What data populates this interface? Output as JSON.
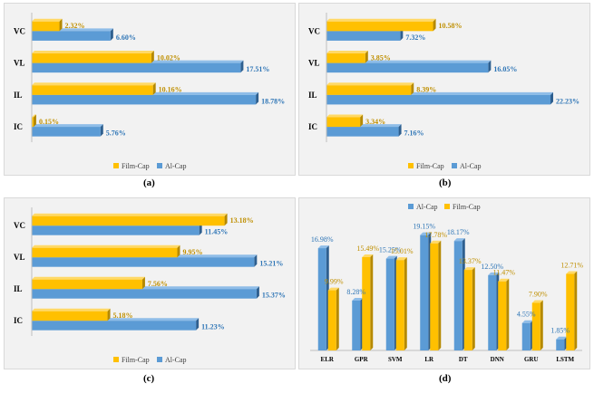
{
  "colors": {
    "al_cap": "#5b9bd5",
    "al_cap_top": "#8fbde8",
    "al_cap_side": "#2e5f8f",
    "film_cap": "#ffc000",
    "film_cap_top": "#ffd966",
    "film_cap_side": "#b58900",
    "al_label": "#2e75b6",
    "film_label": "#bf8f00"
  },
  "captions": [
    "(a)",
    "(b)",
    "(c)",
    "(d)"
  ],
  "chart_data": [
    {
      "type": "bar",
      "orientation": "horizontal",
      "categories": [
        "VC",
        "VL",
        "IL",
        "IC"
      ],
      "series": [
        {
          "name": "Film-Cap",
          "values": [
            2.32,
            10.02,
            10.16,
            0.15
          ],
          "labels": [
            "2.32%",
            "10.02%",
            "10.16%",
            "0.15%"
          ]
        },
        {
          "name": "Al-Cap",
          "values": [
            6.6,
            17.51,
            18.78,
            5.76
          ],
          "labels": [
            "6.60%",
            "17.51%",
            "18.78%",
            "5.76%"
          ]
        }
      ],
      "xlim": [
        0,
        19
      ],
      "legend": "bottom",
      "grid": false
    },
    {
      "type": "bar",
      "orientation": "horizontal",
      "categories": [
        "VC",
        "VL",
        "IL",
        "IC"
      ],
      "series": [
        {
          "name": "Film-Cap",
          "values": [
            10.58,
            3.85,
            8.39,
            3.34
          ],
          "labels": [
            "10.58%",
            "3.85%",
            "8.39%",
            "3.34%"
          ]
        },
        {
          "name": "Al-Cap",
          "values": [
            7.32,
            16.05,
            22.23,
            7.16
          ],
          "labels": [
            "7.32%",
            "16.05%",
            "22.23%",
            "7.16%"
          ]
        }
      ],
      "xlim": [
        0,
        22.5
      ],
      "legend": "bottom",
      "grid": false
    },
    {
      "type": "bar",
      "orientation": "horizontal",
      "categories": [
        "VC",
        "VL",
        "IL",
        "IC"
      ],
      "series": [
        {
          "name": "Film-Cap",
          "values": [
            13.18,
            9.95,
            7.56,
            5.18
          ],
          "labels": [
            "13.18%",
            "9.95%",
            "7.56%",
            "5.18%"
          ]
        },
        {
          "name": "Al-Cap",
          "values": [
            11.45,
            15.21,
            15.37,
            11.23
          ],
          "labels": [
            "11.45%",
            "15.21%",
            "15.37%",
            "11.23%"
          ]
        }
      ],
      "xlim": [
        0,
        15.5
      ],
      "legend": "bottom",
      "grid": false
    },
    {
      "type": "bar",
      "orientation": "vertical",
      "categories": [
        "ELR",
        "GPR",
        "SVM",
        "LR",
        "DT",
        "DNN",
        "GRU",
        "LSTM"
      ],
      "series": [
        {
          "name": "Al-Cap",
          "values": [
            16.98,
            8.28,
            15.25,
            19.15,
            18.17,
            12.5,
            4.55,
            1.85
          ],
          "labels": [
            "16.98%",
            "8.28%",
            "15.25%",
            "19.15%",
            "18.17%",
            "12.50%",
            "4.55%",
            "1.85%"
          ]
        },
        {
          "name": "Film-Cap",
          "values": [
            9.99,
            15.49,
            15.01,
            17.78,
            13.37,
            11.47,
            7.9,
            12.71
          ],
          "labels": [
            "9.99%",
            "15.49%",
            "15.01%",
            "17.78%",
            "13.37%",
            "11.47%",
            "7.90%",
            "12.71%"
          ]
        }
      ],
      "ylim": [
        0,
        20
      ],
      "legend": "top",
      "grid": false
    }
  ]
}
